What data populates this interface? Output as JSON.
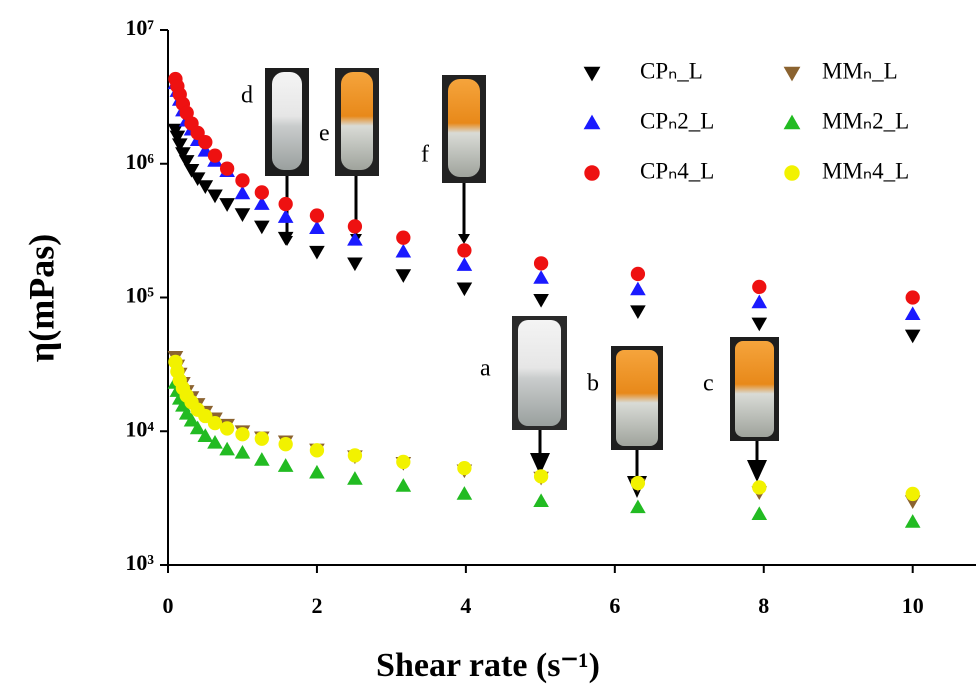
{
  "chart_data": {
    "type": "scatter",
    "x_label": "Shear rate (s⁻¹)",
    "y_label": "η(mPas)",
    "xlim": [
      0,
      10.85
    ],
    "xticks": [
      0,
      2,
      4,
      6,
      8,
      10
    ],
    "ylim": [
      1000,
      10000000
    ],
    "y_scale": "log",
    "yticks": [
      {
        "value": 1000,
        "label": "10³"
      },
      {
        "value": 10000,
        "label": "10⁴"
      },
      {
        "value": 100000,
        "label": "10⁵"
      },
      {
        "value": 1000000,
        "label": "10⁶"
      },
      {
        "value": 10000000,
        "label": "10⁷"
      }
    ],
    "legend": "upper right",
    "x": [
      0.1,
      0.126,
      0.158,
      0.2,
      0.251,
      0.316,
      0.398,
      0.501,
      0.631,
      0.794,
      1,
      1.26,
      1.58,
      2,
      2.51,
      3.16,
      3.98,
      5.01,
      6.31,
      7.94,
      10
    ],
    "series": [
      {
        "name": "CPₙ_L",
        "color": "#000000",
        "marker": "triangle-down",
        "values": [
          1800000,
          1600000,
          1400000,
          1200000,
          1050000,
          900000,
          780000,
          680000,
          580000,
          500000,
          420000,
          340000,
          280000,
          220000,
          180000,
          147000,
          117000,
          96000,
          79000,
          64000,
          52000
        ]
      },
      {
        "name": "CPₙ2_L",
        "color": "#1a1aff",
        "marker": "triangle-up",
        "values": [
          4000000,
          3500000,
          3000000,
          2500000,
          2100000,
          1800000,
          1500000,
          1250000,
          1050000,
          880000,
          600000,
          500000,
          400000,
          330000,
          270000,
          220000,
          175000,
          140000,
          115000,
          92000,
          75000
        ]
      },
      {
        "name": "CPₙ4_L",
        "color": "#ee1111",
        "marker": "circle",
        "values": [
          4300000,
          3800000,
          3300000,
          2800000,
          2400000,
          2000000,
          1700000,
          1450000,
          1150000,
          920000,
          750000,
          610000,
          500000,
          410000,
          340000,
          280000,
          225000,
          180000,
          150000,
          120000,
          100000
        ]
      },
      {
        "name": "MMₙ_L",
        "color": "#8b6330",
        "marker": "triangle-down",
        "values": [
          36000,
          31000,
          27000,
          23000,
          20000,
          18000,
          16000,
          14000,
          12500,
          11200,
          10000,
          9000,
          8400,
          7300,
          6500,
          5800,
          5100,
          4500,
          4000,
          3500,
          3000
        ]
      },
      {
        "name": "MMₙ2_L",
        "color": "#22bb22",
        "marker": "triangle-up",
        "values": [
          23000,
          20000,
          17500,
          15500,
          13500,
          12000,
          10500,
          9200,
          8200,
          7300,
          6900,
          6100,
          5500,
          4900,
          4400,
          3900,
          3400,
          3000,
          2700,
          2400,
          2100
        ]
      },
      {
        "name": "MMₙ4_L",
        "color": "#f2f200",
        "marker": "circle",
        "values": [
          33000,
          28000,
          24000,
          21000,
          18500,
          16500,
          14500,
          13000,
          11500,
          10500,
          9500,
          8800,
          8000,
          7200,
          6600,
          5900,
          5300,
          4600,
          4100,
          3800,
          3400
        ]
      }
    ],
    "annotations": [
      "d",
      "e",
      "f",
      "a",
      "b",
      "c"
    ]
  }
}
